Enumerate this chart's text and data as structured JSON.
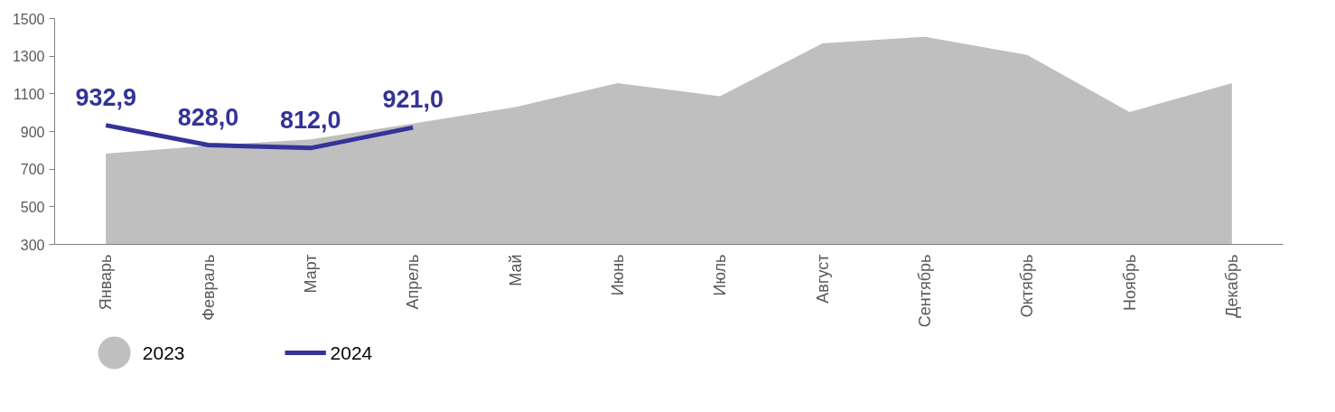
{
  "chart_data": {
    "type": "area",
    "categories": [
      "Январь",
      "Февраль",
      "Март",
      "Апрель",
      "Май",
      "Июнь",
      "Июль",
      "Август",
      "Сентябрь",
      "Октябрь",
      "Ноябрь",
      "Декабрь"
    ],
    "series": [
      {
        "name": "2023",
        "color": "#bfbfbf",
        "values": [
          783,
          825,
          858,
          942,
          1030,
          1157,
          1087,
          1368,
          1403,
          1307,
          1003,
          1157
        ]
      },
      {
        "name": "2024",
        "type": "line",
        "color": "#333399",
        "values": [
          932.9,
          828.0,
          812.0,
          921.0,
          null,
          null,
          null,
          null,
          null,
          null,
          null,
          null
        ],
        "value_labels": [
          "932,9",
          "828,0",
          "812,0",
          "921,0",
          null,
          null,
          null,
          null,
          null,
          null,
          null,
          null
        ]
      }
    ],
    "ylim": [
      300,
      1500
    ],
    "yticks": [
      300,
      500,
      700,
      900,
      1100,
      1300,
      1500
    ],
    "grid": false,
    "legend": "bottom"
  }
}
